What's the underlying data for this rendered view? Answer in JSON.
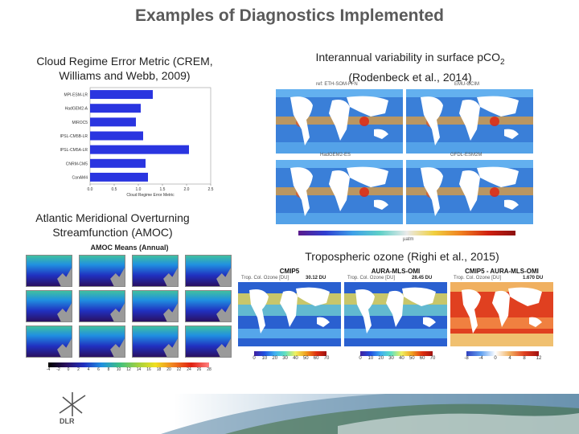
{
  "slide": {
    "title": "Examples of Diagnostics Implemented"
  },
  "crem": {
    "caption_line1": "Cloud Regime Error Metric (CREM,",
    "caption_line2": "Williams and Webb, 2009)",
    "chart_data": {
      "type": "bar",
      "orientation": "horizontal",
      "categories": [
        "MPI-ESM-LR",
        "HadGEM2-A",
        "MIROC5",
        "IPSL-CM5B-LR",
        "IPSL-CM5A-LR",
        "CNRM-CM5",
        "CanAM4"
      ],
      "values": [
        1.3,
        1.05,
        0.95,
        1.1,
        2.05,
        1.15,
        1.2
      ],
      "xlabel": "Cloud Regime Error Metric",
      "xlim": [
        0.0,
        2.5
      ],
      "xticks": [
        "0.0",
        "0.5",
        "1.0",
        "1.5",
        "2.0",
        "2.5"
      ],
      "bar_color": "#2a35e0"
    }
  },
  "pco2": {
    "caption_line1": "Interannual variability in surface p",
    "caption_co": "CO",
    "caption_sub": "2",
    "caption_line2": "(Rodenbeck et al., 2014)",
    "maps": [
      {
        "label": "ref: ETH-SOM-FFN"
      },
      {
        "label": "EMU-OCIM"
      },
      {
        "label": "HadGEM2-ES"
      },
      {
        "label": "GFDL-ESM2M"
      }
    ],
    "unit": "µatm"
  },
  "amoc": {
    "caption_line1": "Atlantic Meridional Overturning",
    "caption_line2": "Streamfunction (AMOC)",
    "panel_title": "AMOC Means (Annual)",
    "colorbar_ticks": [
      "-4",
      "-2",
      "0",
      "2",
      "4",
      "6",
      "8",
      "10",
      "12",
      "14",
      "16",
      "18",
      "20",
      "22",
      "24",
      "26",
      "28"
    ]
  },
  "ozone": {
    "caption": "Tropospheric ozone (Righi et al., 2015)",
    "maps": [
      {
        "title": "CMIP5",
        "subtitle": "Trop. Col. Ozone [DU]",
        "value": "30.12 DU"
      },
      {
        "title": "AURA-MLS-OMI",
        "subtitle": "Trop. Col. Ozone [DU]",
        "value": "28.45 DU"
      },
      {
        "title": "CMIP5 - AURA-MLS-OMI",
        "subtitle": "Trop. Col. Ozone [DU]",
        "value": "1.670 DU"
      }
    ],
    "colorbar1_ticks": [
      "0",
      "10",
      "20",
      "30",
      "40",
      "50",
      "60",
      "70"
    ],
    "colorbar2_ticks": [
      "0",
      "10",
      "20",
      "30",
      "40",
      "50",
      "60",
      "70"
    ],
    "colorbar3_ticks": [
      "-8",
      "-4",
      "0",
      "4",
      "8",
      "12"
    ]
  },
  "logo": {
    "text": "DLR"
  },
  "colors": {
    "title": "#5a5a5a",
    "bar": "#2a35e0",
    "ocean": "#2f6fd0",
    "land": "#ffffff"
  }
}
